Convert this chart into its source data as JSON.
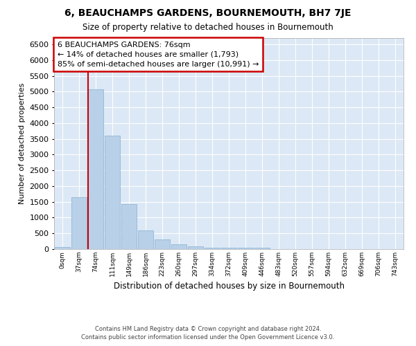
{
  "title": "6, BEAUCHAMPS GARDENS, BOURNEMOUTH, BH7 7JE",
  "subtitle": "Size of property relative to detached houses in Bournemouth",
  "xlabel": "Distribution of detached houses by size in Bournemouth",
  "ylabel": "Number of detached properties",
  "bar_color": "#b8d0e8",
  "bar_edge_color": "#90b8d8",
  "background_color": "#dce8f5",
  "grid_color": "#ffffff",
  "categories": [
    "0sqm",
    "37sqm",
    "74sqm",
    "111sqm",
    "149sqm",
    "186sqm",
    "223sqm",
    "260sqm",
    "297sqm",
    "334sqm",
    "372sqm",
    "409sqm",
    "446sqm",
    "483sqm",
    "520sqm",
    "557sqm",
    "594sqm",
    "632sqm",
    "669sqm",
    "706sqm",
    "743sqm"
  ],
  "values": [
    75,
    1650,
    5080,
    3600,
    1420,
    590,
    300,
    150,
    90,
    50,
    45,
    40,
    50,
    0,
    0,
    0,
    0,
    0,
    0,
    0,
    0
  ],
  "vline_x_index": 2,
  "annotation_title": "6 BEAUCHAMPS GARDENS: 76sqm",
  "annotation_line1": "← 14% of detached houses are smaller (1,793)",
  "annotation_line2": "85% of semi-detached houses are larger (10,991) →",
  "annotation_box_color": "#ffffff",
  "annotation_box_edge": "#cc0000",
  "vline_color": "#cc0000",
  "ylim": [
    0,
    6700
  ],
  "yticks": [
    0,
    500,
    1000,
    1500,
    2000,
    2500,
    3000,
    3500,
    4000,
    4500,
    5000,
    5500,
    6000,
    6500
  ],
  "footer1": "Contains HM Land Registry data © Crown copyright and database right 2024.",
  "footer2": "Contains public sector information licensed under the Open Government Licence v3.0."
}
